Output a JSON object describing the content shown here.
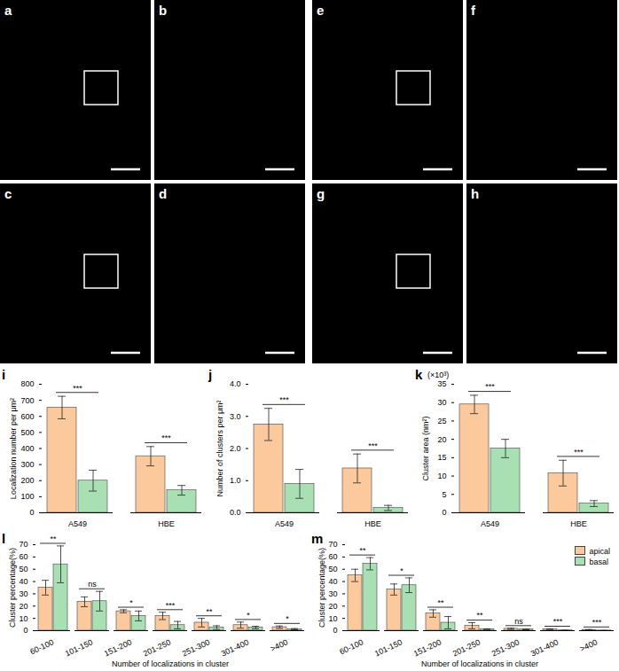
{
  "images": [
    {
      "label": "a",
      "box": true
    },
    {
      "label": "b",
      "box": false
    },
    {
      "label": "c",
      "box": true
    },
    {
      "label": "d",
      "box": false
    },
    {
      "label": "e",
      "box": true
    },
    {
      "label": "f",
      "box": false
    },
    {
      "label": "g",
      "box": true
    },
    {
      "label": "h",
      "box": false
    }
  ],
  "chart_data": [
    {
      "type": "bar",
      "panel": "i",
      "ylabel": "Localization number per μm²",
      "categories": [
        "A549",
        "HBE"
      ],
      "series": [
        {
          "name": "apical",
          "color": "#fbc99c",
          "values": [
            655,
            352
          ],
          "errors": [
            70,
            60
          ]
        },
        {
          "name": "basal",
          "color": "#a8dfb3",
          "values": [
            200,
            140
          ],
          "errors": [
            65,
            30
          ]
        }
      ],
      "significance": [
        "***",
        "***"
      ],
      "ylim": [
        0,
        800
      ],
      "yticks": [
        0,
        100,
        200,
        300,
        400,
        500,
        600,
        700,
        800
      ]
    },
    {
      "type": "bar",
      "panel": "j",
      "ylabel": "Number of clusters per μm²",
      "categories": [
        "A549",
        "HBE"
      ],
      "series": [
        {
          "name": "apical",
          "color": "#fbc99c",
          "values": [
            2.75,
            1.38
          ],
          "errors": [
            0.5,
            0.45
          ]
        },
        {
          "name": "basal",
          "color": "#a8dfb3",
          "values": [
            0.9,
            0.15
          ],
          "errors": [
            0.45,
            0.08
          ]
        }
      ],
      "significance": [
        "***",
        "***"
      ],
      "ylim": [
        0,
        4
      ],
      "yticks": [
        0,
        1,
        2,
        3,
        4
      ]
    },
    {
      "type": "bar",
      "panel": "k",
      "scale_label": "(×10³)",
      "ylabel": "Cluster area (nm²)",
      "categories": [
        "A549",
        "HBE"
      ],
      "series": [
        {
          "name": "apical",
          "color": "#fbc99c",
          "values": [
            29.5,
            10.8
          ],
          "errors": [
            2.5,
            3.5
          ]
        },
        {
          "name": "basal",
          "color": "#a8dfb3",
          "values": [
            17.5,
            2.5
          ],
          "errors": [
            2.5,
            0.8
          ]
        }
      ],
      "significance": [
        "***",
        "***"
      ],
      "ylim": [
        0,
        35
      ],
      "yticks": [
        0,
        5,
        10,
        15,
        20,
        25,
        30,
        35
      ]
    },
    {
      "type": "bar",
      "panel": "l",
      "ylabel": "Cluster percentage(%)",
      "xlabel": "Number of localizations in cluster",
      "categories": [
        "60-100",
        "101-150",
        "151-200",
        "201-250",
        "251-300",
        "301-400",
        ">400"
      ],
      "series": [
        {
          "name": "apical",
          "color": "#fbc99c",
          "values": [
            35,
            23.5,
            15.8,
            12,
            6.5,
            4.5,
            2.8
          ],
          "errors": [
            6,
            4,
            1.2,
            3,
            3.5,
            2.5,
            1
          ]
        },
        {
          "name": "basal",
          "color": "#a8dfb3",
          "values": [
            54,
            24,
            12,
            4.5,
            2.5,
            2.5,
            1.2
          ],
          "errors": [
            15,
            8,
            4,
            3,
            1.5,
            1,
            0.5
          ]
        }
      ],
      "significance": [
        "**",
        "ns",
        "*",
        "***",
        "**",
        "*",
        "*"
      ],
      "ylim": [
        0,
        70
      ],
      "yticks": [
        0,
        10,
        20,
        30,
        40,
        50,
        60,
        70
      ]
    },
    {
      "type": "bar",
      "panel": "m",
      "ylabel": "Cluster percentage(%)",
      "xlabel": "Number of localizations in cluster",
      "categories": [
        "60-100",
        "101-150",
        "151-200",
        "201-250",
        "251-300",
        "301-400",
        ">400"
      ],
      "series": [
        {
          "name": "apical",
          "color": "#fbc99c",
          "values": [
            45,
            33.5,
            14,
            4,
            1.5,
            1,
            0.6
          ],
          "errors": [
            5,
            4.5,
            3,
            2.5,
            0.5,
            0.5,
            0.3
          ]
        },
        {
          "name": "basal",
          "color": "#a8dfb3",
          "values": [
            54.5,
            37,
            6.5,
            1.2,
            1,
            0.2,
            0.1
          ],
          "errors": [
            5,
            6,
            5,
            0.3,
            0.3,
            0.1,
            0.1
          ]
        }
      ],
      "significance": [
        "**",
        "*",
        "**",
        "**",
        "ns",
        "***",
        "***"
      ],
      "legend": "top-right",
      "ylim": [
        0,
        70
      ],
      "yticks": [
        0,
        10,
        20,
        30,
        40,
        50,
        60,
        70
      ]
    }
  ]
}
